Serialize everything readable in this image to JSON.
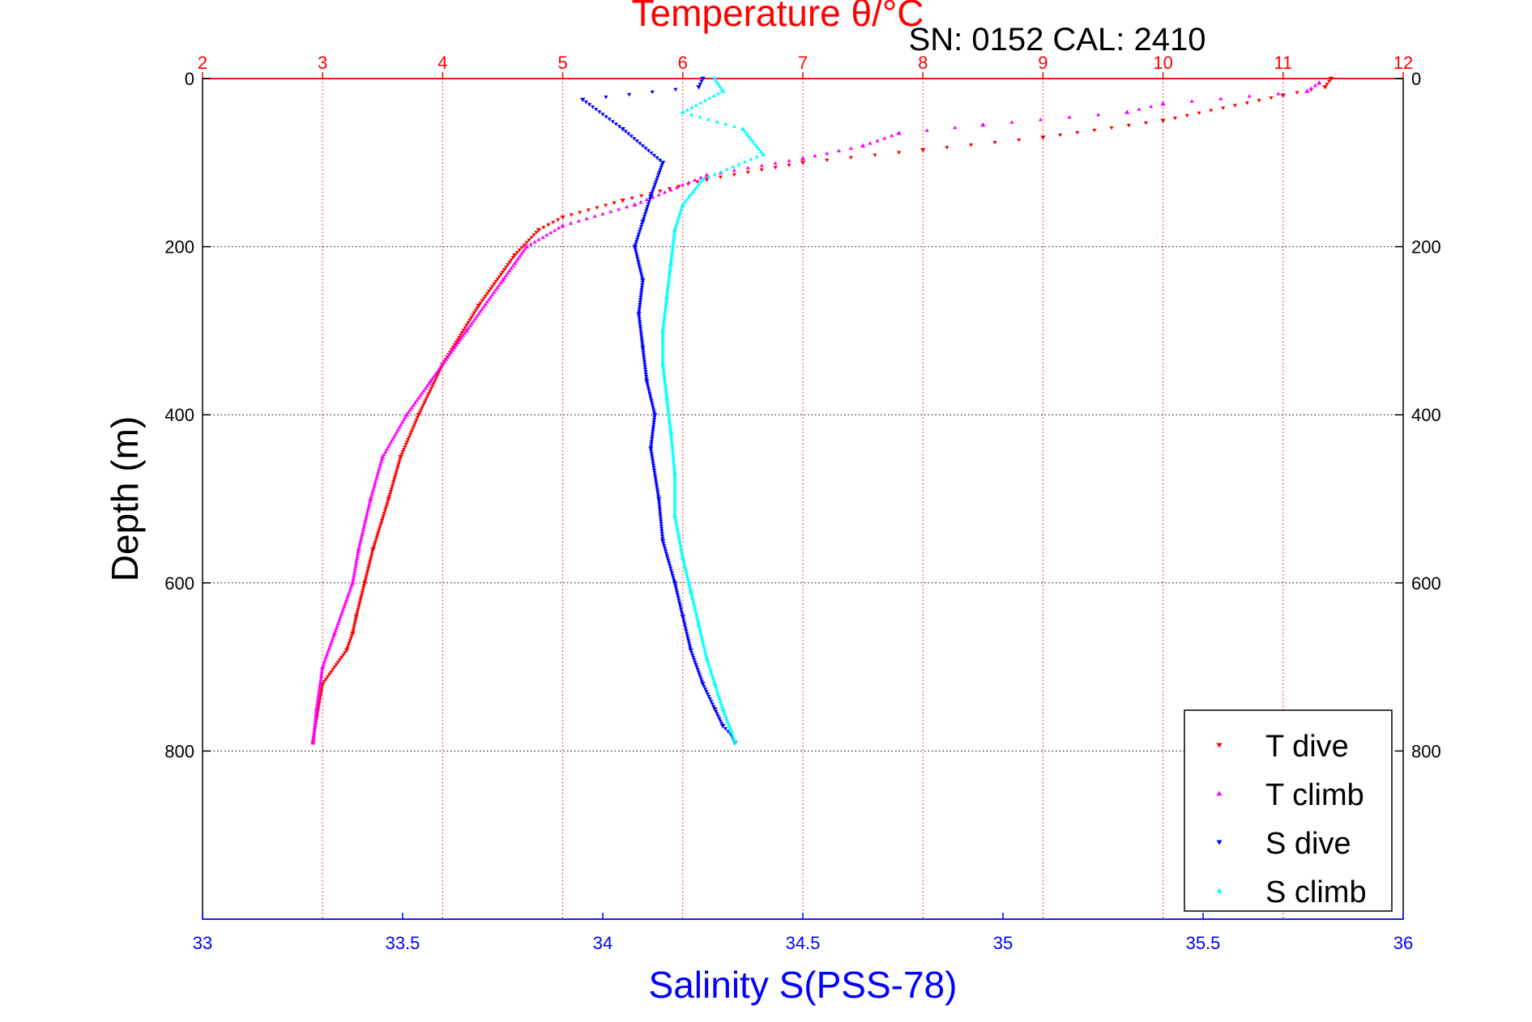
{
  "chart_data": {
    "type": "scatter",
    "title": "Temperature θ/°C",
    "subtitle": "SN: 0152  CAL: 2410",
    "ylabel": "Depth (m)",
    "xlabel_bottom": "Salinity S(PSS-78)",
    "xlabel_top": "Temperature θ/°C",
    "ylim": [
      0,
      1000
    ],
    "y_reversed": true,
    "y_ticks": [
      "0",
      "200",
      "400",
      "600",
      "800"
    ],
    "y_tick_values": [
      0,
      200,
      400,
      600,
      800
    ],
    "x_bottom_lim": [
      33,
      36
    ],
    "x_bottom_ticks": [
      "33",
      "33.5",
      "34",
      "34.5",
      "35",
      "35.5",
      "36"
    ],
    "x_bottom_tick_values": [
      33,
      33.5,
      34,
      34.5,
      35,
      35.5,
      36
    ],
    "x_top_lim": [
      2,
      12
    ],
    "x_top_ticks": [
      "2",
      "3",
      "4",
      "5",
      "6",
      "7",
      "8",
      "9",
      "10",
      "11",
      "12"
    ],
    "x_top_tick_values": [
      2,
      3,
      4,
      5,
      6,
      7,
      8,
      9,
      10,
      11,
      12
    ],
    "grid": true,
    "legend_position": "bottom-right",
    "colors": {
      "t_dive": "#ff0000",
      "t_climb": "#ff00ff",
      "s_dive": "#0000ff",
      "s_climb": "#00ffff",
      "top_axis": "#ff0000",
      "bottom_axis": "#0000ff"
    },
    "series": [
      {
        "name": "T dive",
        "axis": "temperature",
        "marker": "triangle-down",
        "x": [
          11.4,
          11.35,
          11.0,
          10.0,
          9.0,
          8.0,
          7.0,
          6.2,
          5.5,
          5.0,
          4.8,
          4.6,
          4.3,
          4.0,
          3.8,
          3.65,
          3.55,
          3.42,
          3.35,
          3.28,
          3.25,
          3.2,
          3.0,
          2.95,
          2.92
        ],
        "y": [
          0,
          10,
          20,
          50,
          70,
          85,
          100,
          120,
          145,
          165,
          180,
          210,
          270,
          340,
          400,
          450,
          500,
          560,
          600,
          640,
          660,
          680,
          720,
          760,
          790
        ]
      },
      {
        "name": "T climb",
        "axis": "temperature",
        "marker": "triangle-up",
        "x": [
          11.3,
          11.2,
          10.0,
          9.7,
          8.5,
          7.8,
          7.5,
          7.0,
          6.2,
          5.6,
          5.0,
          4.7,
          4.5,
          4.2,
          3.9,
          3.7,
          3.5,
          3.4,
          3.3,
          3.25,
          3.1,
          3.0,
          2.95,
          2.92
        ],
        "y": [
          5,
          15,
          30,
          40,
          55,
          65,
          80,
          95,
          115,
          150,
          175,
          200,
          240,
          300,
          360,
          400,
          450,
          500,
          560,
          600,
          660,
          700,
          750,
          790
        ]
      },
      {
        "name": "S dive",
        "axis": "salinity",
        "marker": "triangle-down",
        "x": [
          34.25,
          34.24,
          33.95,
          34.05,
          34.15,
          34.12,
          34.1,
          34.08,
          34.1,
          34.09,
          34.1,
          34.11,
          34.13,
          34.12,
          34.14,
          34.15,
          34.18,
          34.2,
          34.22,
          34.25,
          34.28,
          34.3,
          34.32,
          34.33
        ],
        "y": [
          0,
          10,
          25,
          60,
          100,
          140,
          170,
          200,
          240,
          280,
          320,
          360,
          400,
          440,
          500,
          550,
          600,
          640,
          680,
          720,
          750,
          770,
          780,
          790
        ]
      },
      {
        "name": "S climb",
        "axis": "salinity",
        "marker": "triangle-up",
        "x": [
          34.28,
          34.3,
          34.2,
          34.35,
          34.4,
          34.25,
          34.2,
          34.18,
          34.17,
          34.16,
          34.15,
          34.15,
          34.16,
          34.17,
          34.18,
          34.18,
          34.2,
          34.22,
          34.24,
          34.26,
          34.28,
          34.3,
          34.32,
          34.33
        ],
        "y": [
          0,
          15,
          40,
          60,
          90,
          120,
          150,
          180,
          220,
          260,
          300,
          340,
          380,
          420,
          470,
          520,
          570,
          610,
          650,
          690,
          720,
          750,
          775,
          790
        ]
      }
    ]
  }
}
